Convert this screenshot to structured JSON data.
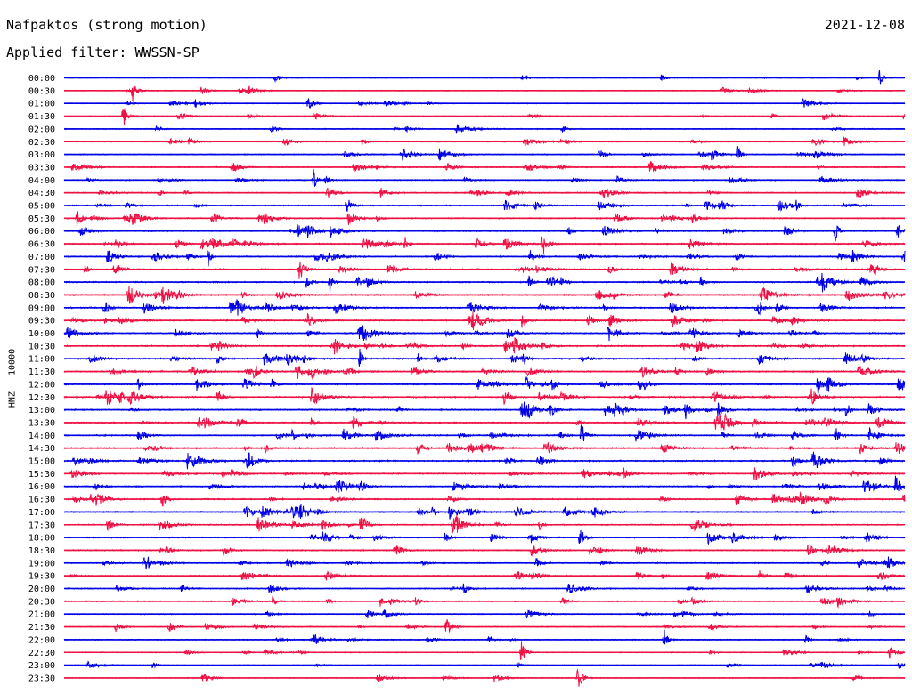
{
  "header": {
    "station": "Nafpaktos (strong motion)",
    "date": "2021-12-08",
    "filter": "Applied filter: WWSSN-SP"
  },
  "chart_data": {
    "type": "line",
    "title": "Nafpaktos (strong motion)",
    "ylabel": "HNZ - 10000",
    "row_labels": [
      "00:00",
      "00:30",
      "01:00",
      "01:30",
      "02:00",
      "02:30",
      "03:00",
      "03:30",
      "04:00",
      "04:30",
      "05:00",
      "05:30",
      "06:00",
      "06:30",
      "07:00",
      "07:30",
      "08:00",
      "08:30",
      "09:00",
      "09:30",
      "10:00",
      "10:30",
      "11:00",
      "11:30",
      "12:00",
      "12:30",
      "13:00",
      "13:30",
      "14:00",
      "14:30",
      "15:00",
      "15:30",
      "16:00",
      "16:30",
      "17:00",
      "17:30",
      "18:00",
      "18:30",
      "19:00",
      "19:30",
      "20:00",
      "20:30",
      "21:00",
      "21:30",
      "22:00",
      "22:30",
      "23:00",
      "23:30"
    ],
    "series_colors": [
      "#0000e6",
      "#ee1144"
    ],
    "grid": false
  }
}
